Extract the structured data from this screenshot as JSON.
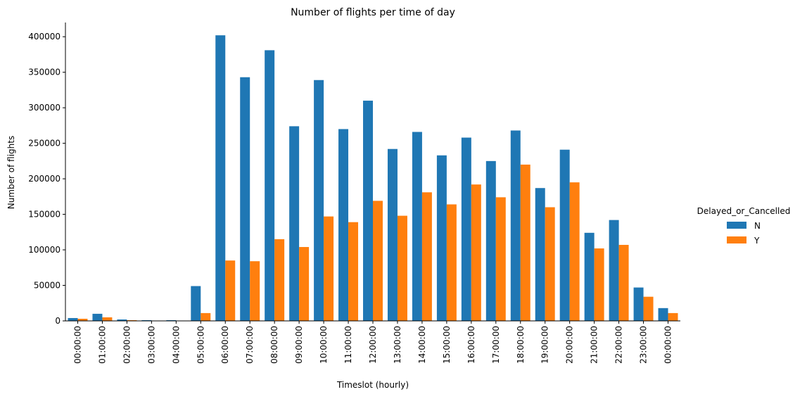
{
  "chart_data": {
    "type": "bar",
    "title": "Number of flights per time of day",
    "xlabel": "Timeslot (hourly)",
    "ylabel": "Number of flights",
    "ylim": [
      0,
      420000
    ],
    "yticks": [
      0,
      50000,
      100000,
      150000,
      200000,
      250000,
      300000,
      350000,
      400000
    ],
    "grid": false,
    "legend": {
      "title": "Delayed_or_Cancelled",
      "placement": "right"
    },
    "categories": [
      "00:00:00",
      "01:00:00",
      "02:00:00",
      "03:00:00",
      "04:00:00",
      "05:00:00",
      "06:00:00",
      "07:00:00",
      "08:00:00",
      "09:00:00",
      "10:00:00",
      "11:00:00",
      "12:00:00",
      "13:00:00",
      "14:00:00",
      "15:00:00",
      "16:00:00",
      "17:00:00",
      "18:00:00",
      "19:00:00",
      "20:00:00",
      "21:00:00",
      "22:00:00",
      "23:00:00",
      "00:00:00"
    ],
    "series": [
      {
        "name": "N",
        "color": "#1f77b4",
        "values": [
          4000,
          10000,
          2000,
          1000,
          1000,
          49000,
          402000,
          343000,
          381000,
          274000,
          339000,
          270000,
          310000,
          242000,
          266000,
          233000,
          258000,
          225000,
          268000,
          187000,
          241000,
          124000,
          142000,
          47000,
          18000
        ]
      },
      {
        "name": "Y",
        "color": "#ff7f0e",
        "values": [
          3000,
          5000,
          1000,
          500,
          300,
          11000,
          85000,
          84000,
          115000,
          104000,
          147000,
          139000,
          169000,
          148000,
          181000,
          164000,
          192000,
          174000,
          220000,
          160000,
          195000,
          102000,
          107000,
          34000,
          11000
        ]
      }
    ]
  }
}
